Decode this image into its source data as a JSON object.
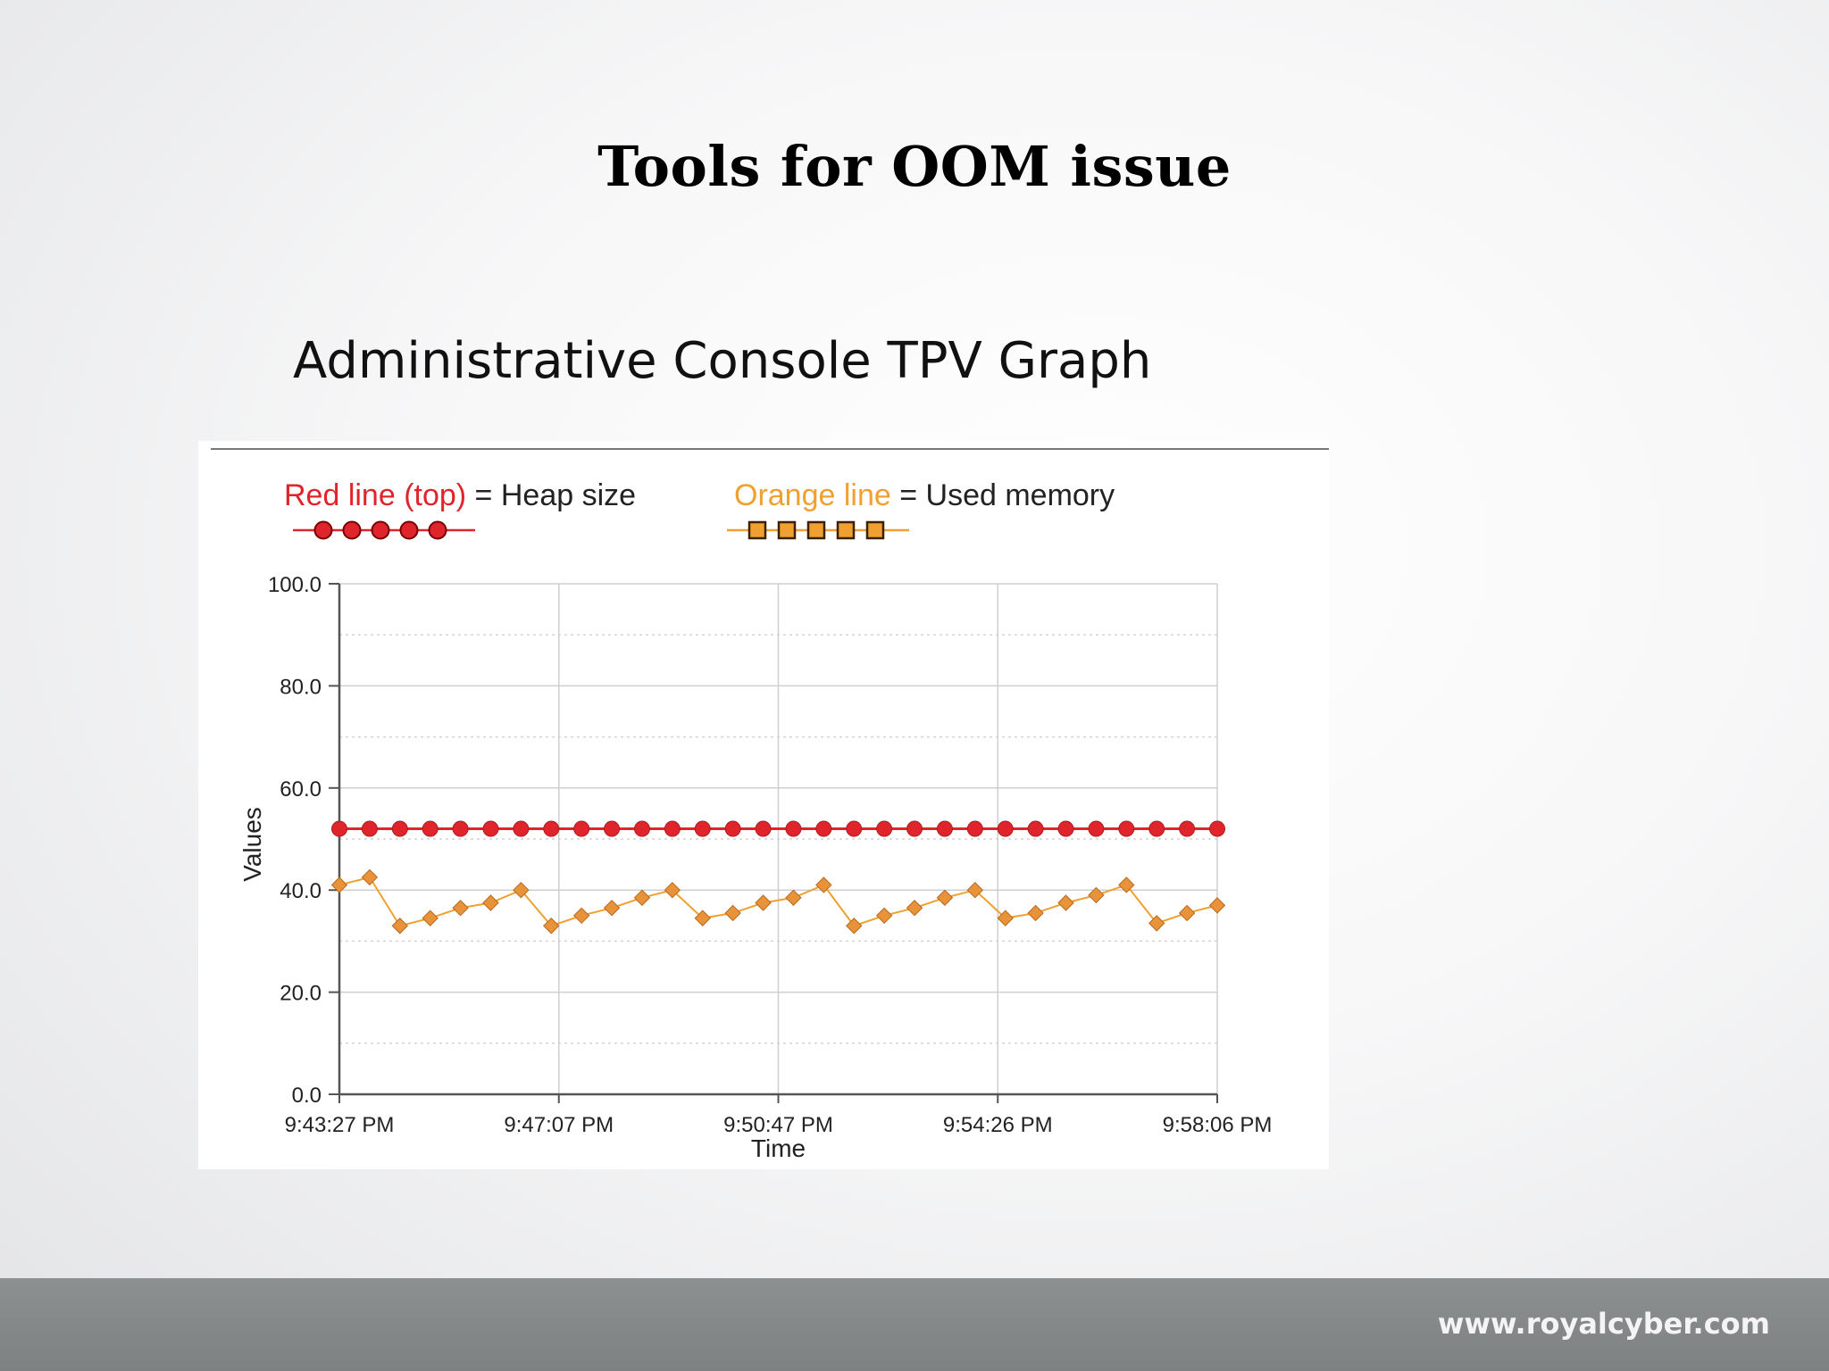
{
  "slide": {
    "title": "Tools for OOM issue",
    "subtitle": "Administrative Console TPV Graph",
    "footer_url": "www.royalcyber.com"
  },
  "legend": {
    "red_label": "Red line (top)",
    "red_suffix": " = Heap size",
    "orange_label": "Orange line",
    "orange_suffix": " = Used memory"
  },
  "colors": {
    "heap": "#e0242b",
    "used": "#f0a030",
    "used_marker": "#e8923a",
    "axis": "#555555",
    "grid": "#cfcfcf"
  },
  "chart_data": {
    "type": "line",
    "xlabel": "Time",
    "ylabel": "Values",
    "ylim": [
      0,
      100
    ],
    "yticks": [
      "0.0",
      "20.0",
      "40.0",
      "60.0",
      "80.0",
      "100.0"
    ],
    "xticks": [
      "9:43:27 PM",
      "9:47:07 PM",
      "9:50:47 PM",
      "9:54:26 PM",
      "9:58:06 PM"
    ],
    "grid": true,
    "points_per_series": 30,
    "series": [
      {
        "name": "Heap size",
        "marker": "circle",
        "values": [
          52,
          52,
          52,
          52,
          52,
          52,
          52,
          52,
          52,
          52,
          52,
          52,
          52,
          52,
          52,
          52,
          52,
          52,
          52,
          52,
          52,
          52,
          52,
          52,
          52,
          52,
          52,
          52,
          52,
          52
        ]
      },
      {
        "name": "Used memory",
        "marker": "diamond",
        "values": [
          41,
          42.5,
          33,
          34.5,
          36.5,
          37.5,
          40,
          33,
          35,
          36.5,
          38.5,
          40,
          34.5,
          35.5,
          37.5,
          38.5,
          41,
          33,
          35,
          36.5,
          38.5,
          40,
          34.5,
          35.5,
          37.5,
          39,
          41,
          33.5,
          35.5,
          37
        ]
      }
    ]
  }
}
